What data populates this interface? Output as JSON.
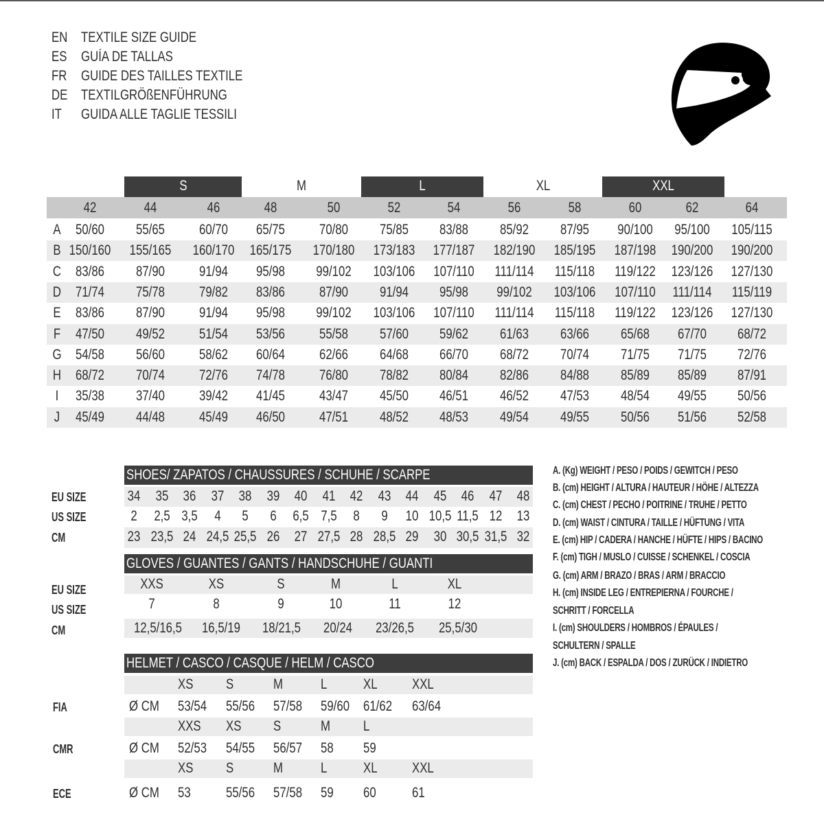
{
  "header": {
    "lines": [
      {
        "code": "EN",
        "title": "TEXTILE SIZE GUIDE"
      },
      {
        "code": "ES",
        "title": "GUÍA DE TALLAS"
      },
      {
        "code": "FR",
        "title": "GUIDE DES TAILLES TEXTILE"
      },
      {
        "code": "DE",
        "title": "TEXTILGRÖßENFÜHRUNG"
      },
      {
        "code": "IT",
        "title": "GUIDA ALLE TAGLIE TESSILI"
      }
    ],
    "icon": "helmet-icon"
  },
  "size_table": {
    "bands": [
      {
        "label": "S",
        "dark": true
      },
      {
        "label": "M",
        "dark": false
      },
      {
        "label": "L",
        "dark": true
      },
      {
        "label": "XL",
        "dark": false
      },
      {
        "label": "XXL",
        "dark": true
      }
    ],
    "sizes": [
      "42",
      "44",
      "46",
      "48",
      "50",
      "52",
      "54",
      "56",
      "58",
      "60",
      "62",
      "64"
    ],
    "rows": [
      {
        "letter": "A",
        "values": [
          "50/60",
          "55/65",
          "60/70",
          "65/75",
          "70/80",
          "75/85",
          "83/88",
          "85/92",
          "87/95",
          "90/100",
          "95/100",
          "105/115"
        ]
      },
      {
        "letter": "B",
        "values": [
          "150/160",
          "155/165",
          "160/170",
          "165/175",
          "170/180",
          "173/183",
          "177/187",
          "182/190",
          "185/195",
          "187/198",
          "190/200",
          "190/200"
        ]
      },
      {
        "letter": "C",
        "values": [
          "83/86",
          "87/90",
          "91/94",
          "95/98",
          "99/102",
          "103/106",
          "107/110",
          "111/114",
          "115/118",
          "119/122",
          "123/126",
          "127/130"
        ]
      },
      {
        "letter": "D",
        "values": [
          "71/74",
          "75/78",
          "79/82",
          "83/86",
          "87/90",
          "91/94",
          "95/98",
          "99/102",
          "103/106",
          "107/110",
          "111/114",
          "115/119"
        ]
      },
      {
        "letter": "E",
        "values": [
          "83/86",
          "87/90",
          "91/94",
          "95/98",
          "99/102",
          "103/106",
          "107/110",
          "111/114",
          "115/118",
          "119/122",
          "123/126",
          "127/130"
        ]
      },
      {
        "letter": "F",
        "values": [
          "47/50",
          "49/52",
          "51/54",
          "53/56",
          "55/58",
          "57/60",
          "59/62",
          "61/63",
          "63/66",
          "65/68",
          "67/70",
          "68/72"
        ]
      },
      {
        "letter": "G",
        "values": [
          "54/58",
          "56/60",
          "58/62",
          "60/64",
          "62/66",
          "64/68",
          "66/70",
          "68/72",
          "70/74",
          "71/75",
          "71/75",
          "72/76"
        ]
      },
      {
        "letter": "H",
        "values": [
          "68/72",
          "70/74",
          "72/76",
          "74/78",
          "76/80",
          "78/82",
          "80/84",
          "82/86",
          "84/88",
          "85/89",
          "85/89",
          "87/91"
        ]
      },
      {
        "letter": "I",
        "values": [
          "35/38",
          "37/40",
          "39/42",
          "41/45",
          "43/47",
          "45/50",
          "46/51",
          "46/52",
          "47/53",
          "48/54",
          "49/55",
          "50/56"
        ]
      },
      {
        "letter": "J",
        "values": [
          "45/49",
          "44/48",
          "45/49",
          "46/50",
          "47/51",
          "48/52",
          "48/53",
          "49/54",
          "49/55",
          "50/56",
          "51/56",
          "52/58"
        ]
      }
    ]
  },
  "shoes": {
    "title": "SHOES/ ZAPATOS / CHAUSSURES / SCHUHE / SCARPE",
    "labels": [
      "EU SIZE",
      "US SIZE",
      "CM"
    ],
    "eu": [
      "34",
      "35",
      "36",
      "37",
      "38",
      "39",
      "40",
      "41",
      "42",
      "43",
      "44",
      "45",
      "46",
      "47",
      "48"
    ],
    "us": [
      "2",
      "2,5",
      "3,5",
      "4",
      "5",
      "6",
      "6,5",
      "7,5",
      "8",
      "9",
      "10",
      "10,5",
      "11,5",
      "12",
      "13"
    ],
    "cm": [
      "23",
      "23,5",
      "24",
      "24,5",
      "25,5",
      "26",
      "27",
      "27,5",
      "28",
      "28,5",
      "29",
      "30",
      "30,5",
      "31,5",
      "32"
    ]
  },
  "gloves": {
    "title": "GLOVES / GUANTES / GANTS / HANDSCHUHE / GUANTI",
    "labels": [
      "EU SIZE",
      "US SIZE",
      "CM"
    ],
    "eu": [
      "XXS",
      "XS",
      "S",
      "M",
      "L",
      "XL"
    ],
    "us": [
      "7",
      "8",
      "9",
      "10",
      "11",
      "12"
    ],
    "cm": [
      "12,5/16,5",
      "16,5/19",
      "18/21,5",
      "20/24",
      "23/26,5",
      "25,5/30"
    ]
  },
  "helmet": {
    "title": "HELMET / CASCO / CASQUE / HELM / CASCO",
    "groups": [
      {
        "label": "FIA",
        "unit": "Ø CM",
        "sizes": [
          "XS",
          "S",
          "M",
          "L",
          "XL",
          "XXL"
        ],
        "values": [
          "53/54",
          "55/56",
          "57/58",
          "59/60",
          "61/62",
          "63/64"
        ]
      },
      {
        "label": "CMR",
        "unit": "Ø CM",
        "sizes": [
          "XXS",
          "XS",
          "S",
          "M",
          "L"
        ],
        "values": [
          "52/53",
          "54/55",
          "56/57",
          "58",
          "59"
        ]
      },
      {
        "label": "ECE",
        "unit": "Ø CM",
        "sizes": [
          "XS",
          "S",
          "M",
          "L",
          "XL",
          "XXL"
        ],
        "values": [
          "53",
          "55/56",
          "57/58",
          "59",
          "60",
          "61"
        ]
      }
    ]
  },
  "legend": [
    "A. (Kg) WEIGHT / PESO / POIDS / GEWITCH / PESO",
    "B. (cm) HEIGHT / ALTURA / HAUTEUR / HÖHE / ALTEZZA",
    "C. (cm) CHEST / PECHO / POITRINE / TRUHE / PETTO",
    "D. (cm) WAIST / CINTURA / TAILLE / HÜFTUNG / VITA",
    "E. (cm) HIP / CADERA / HANCHE / HÜFTE / HIPS /  BACINO",
    "F.  (cm) TIGH / MUSLO / CUISSE / SCHENKEL / COSCIA",
    "G. (cm) ARM  / BRAZO / BRAS / ARM / BRACCIO",
    "H. (cm) INSIDE LEG / ENTREPIERNA / FOURCHE /",
    "SCHRITT / FORCELLA",
    "I.  (cm) SHOULDERS / HOMBROS / ÉPAULES /",
    "SCHULTERN / SPALLE",
    "J. (cm) BACK / ESPALDA / DOS / ZURÜCK / INDIETRO"
  ],
  "colors": {
    "dark_bar": "#3d3d3d",
    "size_row": "#c9c9c9",
    "stripe": "#ebebeb",
    "text": "#2e2e2e"
  }
}
